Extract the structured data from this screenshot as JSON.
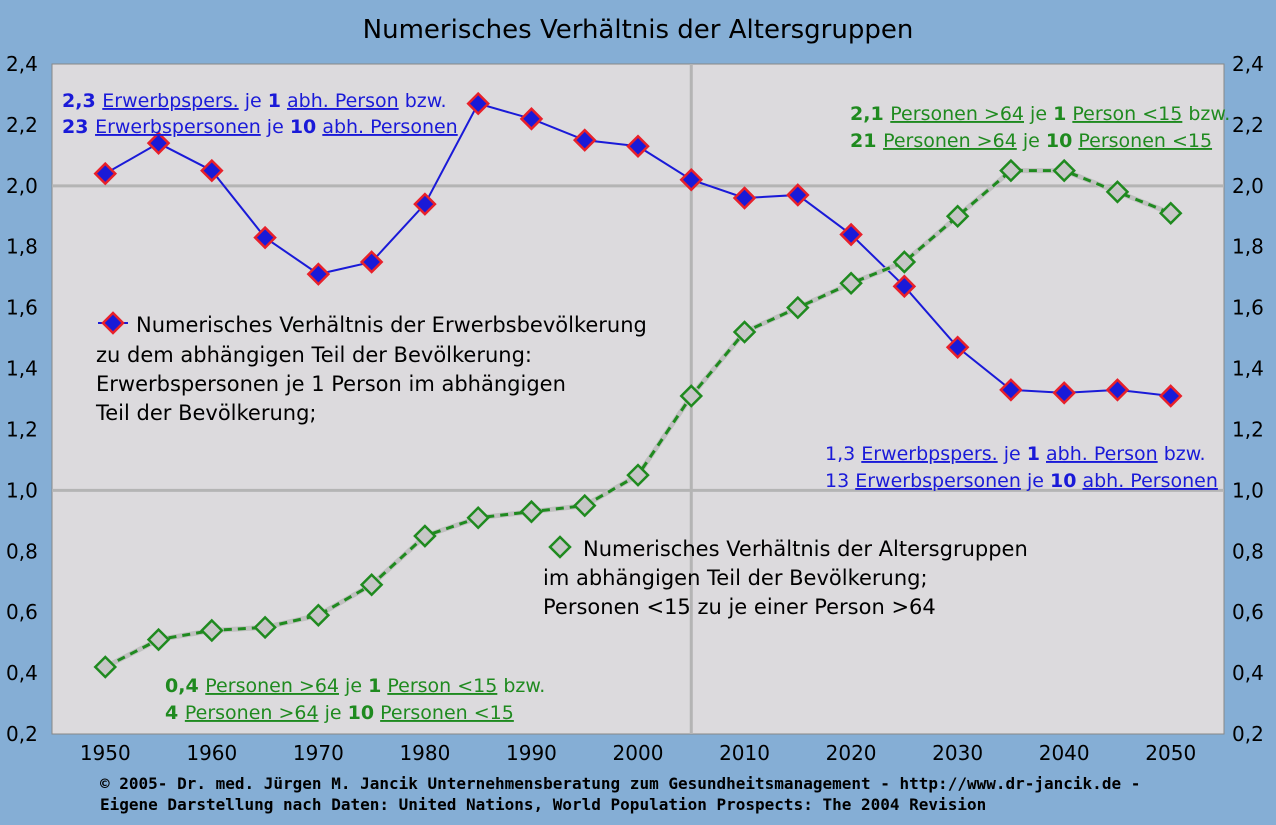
{
  "chart_data": {
    "type": "line",
    "title": "Numerisches Verhältnis der Altersgruppen",
    "x": [
      1950,
      1955,
      1960,
      1965,
      1970,
      1975,
      1980,
      1985,
      1990,
      1995,
      2000,
      2005,
      2010,
      2015,
      2020,
      2025,
      2030,
      2035,
      2040,
      2045,
      2050
    ],
    "x_ticks": [
      "1950",
      "1960",
      "1970",
      "1980",
      "1990",
      "2000",
      "2010",
      "2020",
      "2030",
      "2040",
      "2050"
    ],
    "y_ticks": [
      "0,2",
      "0,4",
      "0,6",
      "0,8",
      "1,0",
      "1,2",
      "1,4",
      "1,6",
      "1,8",
      "2,0",
      "2,2",
      "2,4"
    ],
    "ylim": [
      0.2,
      2.4
    ],
    "xlim": [
      1945,
      2055
    ],
    "grid": "major lines at y=1.0 and y=2.0, vertical at 2005",
    "axes_both_sides": true,
    "series": [
      {
        "key": "erwerb",
        "color": "#1a1ad8",
        "marker_fill": "#1a1ad8",
        "marker_edge": "#e8202a",
        "line_style": "solid",
        "values": [
          2.04,
          2.14,
          2.05,
          1.83,
          1.71,
          1.75,
          1.94,
          2.27,
          2.22,
          2.15,
          2.13,
          2.02,
          1.96,
          1.97,
          1.84,
          1.67,
          1.47,
          1.33,
          1.32,
          1.33,
          1.31
        ]
      },
      {
        "key": "alter",
        "color": "#1f8a1f",
        "marker_fill": "#c7c7c7",
        "marker_edge": "#1f8a1f",
        "line_style": "dashed",
        "values": [
          0.42,
          0.51,
          0.54,
          0.55,
          0.59,
          0.69,
          0.85,
          0.91,
          0.93,
          0.95,
          1.05,
          1.31,
          1.52,
          1.6,
          1.68,
          1.75,
          1.9,
          2.05,
          2.05,
          1.98,
          1.91
        ]
      }
    ],
    "legend": [
      {
        "series": "erwerb",
        "lines": [
          "Numerisches Verhältnis der Erwerbsbevölkerung",
          "zu dem abhängigen Teil der Bevölkerung:",
          "Erwerbspersonen je 1 Person im abhängigen",
          "Teil der Bevölkerung;"
        ]
      },
      {
        "series": "alter",
        "lines": [
          "Numerisches Verhältnis der Altersgruppen",
          "im abhängigen Teil der Bevölkerung;",
          "Personen <15 zu je einer Person >64"
        ]
      }
    ],
    "annotations": [
      {
        "color": "blue",
        "parts": [
          [
            "2,3 ",
            "b"
          ],
          [
            "Erwerbpspers.",
            "u"
          ],
          [
            " je ",
            ""
          ],
          [
            "1",
            "b"
          ],
          [
            " ",
            ""
          ],
          [
            "abh. Person",
            "u"
          ],
          [
            " bzw.",
            ""
          ]
        ]
      },
      {
        "color": "blue",
        "parts": [
          [
            "23 ",
            "b"
          ],
          [
            "Erwerbspersonen",
            "u"
          ],
          [
            " je ",
            ""
          ],
          [
            "10",
            "b"
          ],
          [
            " ",
            ""
          ],
          [
            "abh. Personen",
            "u"
          ]
        ]
      },
      {
        "color": "green",
        "parts": [
          [
            "2,1 ",
            "b"
          ],
          [
            "Personen >64",
            "u"
          ],
          [
            " je ",
            ""
          ],
          [
            "1",
            "b"
          ],
          [
            " ",
            ""
          ],
          [
            "Person <15",
            "u"
          ],
          [
            " bzw.",
            ""
          ]
        ]
      },
      {
        "color": "green",
        "parts": [
          [
            "21 ",
            "b"
          ],
          [
            "Personen >64",
            "u"
          ],
          [
            " je ",
            ""
          ],
          [
            "10",
            "b"
          ],
          [
            " ",
            ""
          ],
          [
            "Personen <15",
            "u"
          ]
        ]
      },
      {
        "color": "blue",
        "parts": [
          [
            "1,3 ",
            ""
          ],
          [
            "Erwerbpspers.",
            "u"
          ],
          [
            " je ",
            ""
          ],
          [
            "1",
            "b"
          ],
          [
            " ",
            ""
          ],
          [
            "abh. Person",
            "u"
          ],
          [
            " bzw.",
            ""
          ]
        ]
      },
      {
        "color": "blue",
        "parts": [
          [
            "13 ",
            ""
          ],
          [
            "Erwerbspersonen",
            "u"
          ],
          [
            " je ",
            ""
          ],
          [
            "10",
            "b"
          ],
          [
            " ",
            ""
          ],
          [
            "abh. Personen",
            "u"
          ]
        ]
      },
      {
        "color": "green",
        "parts": [
          [
            "0,4 ",
            "b"
          ],
          [
            "Personen >64",
            "u"
          ],
          [
            " je ",
            ""
          ],
          [
            "1",
            "b"
          ],
          [
            " ",
            ""
          ],
          [
            "Person <15",
            "u"
          ],
          [
            " bzw.",
            ""
          ]
        ]
      },
      {
        "color": "green",
        "parts": [
          [
            "4 ",
            "b"
          ],
          [
            "Personen >64",
            "u"
          ],
          [
            " je ",
            ""
          ],
          [
            "10",
            "b"
          ],
          [
            " ",
            ""
          ],
          [
            "Personen <15",
            "u"
          ]
        ]
      }
    ]
  },
  "footer": {
    "line1": "© 2005-  Dr. med. Jürgen M. Jancik Unternehmensberatung zum Gesundheitsmanagement - http://www.dr-jancik.de -",
    "line2": "Eigene Darstellung nach Daten: United Nations, World Population Prospects: The 2004 Revision"
  }
}
